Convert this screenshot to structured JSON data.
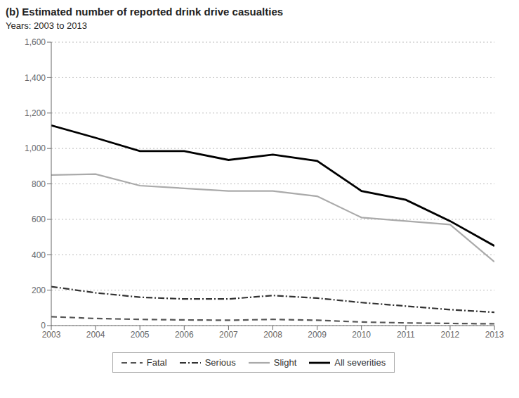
{
  "chart_data": {
    "type": "line",
    "title": "(b) Estimated number of reported drink drive casualties",
    "subtitle": "Years: 2003 to 2013",
    "x": [
      2003,
      2004,
      2005,
      2006,
      2007,
      2008,
      2009,
      2010,
      2011,
      2012,
      2013
    ],
    "series": [
      {
        "name": "Fatal",
        "color": "#555555",
        "line_style": "dashed",
        "values": [
          50,
          40,
          35,
          32,
          30,
          35,
          30,
          20,
          15,
          12,
          10
        ]
      },
      {
        "name": "Serious",
        "color": "#333333",
        "line_style": "dashdot",
        "values": [
          220,
          185,
          160,
          150,
          150,
          170,
          155,
          130,
          110,
          90,
          75
        ]
      },
      {
        "name": "Slight",
        "color": "#aaaaaa",
        "line_style": "solid",
        "values": [
          850,
          855,
          790,
          775,
          760,
          760,
          730,
          610,
          590,
          570,
          360
        ]
      },
      {
        "name": "All severities",
        "color": "#000000",
        "line_style": "solid",
        "values": [
          1130,
          1060,
          985,
          985,
          935,
          965,
          930,
          760,
          710,
          590,
          450
        ]
      }
    ],
    "xlim": [
      2003,
      2013
    ],
    "xticks": [
      2003,
      2004,
      2005,
      2006,
      2007,
      2008,
      2009,
      2010,
      2011,
      2012,
      2013
    ],
    "ylim": [
      0,
      1600
    ],
    "yticks": [
      0,
      200,
      400,
      600,
      800,
      {
        "value": 1000,
        "label": "1,000"
      },
      {
        "value": 1200,
        "label": "1,200"
      },
      {
        "value": 1400,
        "label": "1,400"
      },
      {
        "value": 1600,
        "label": "1,600"
      }
    ],
    "grid": true,
    "legend": "bottom"
  }
}
